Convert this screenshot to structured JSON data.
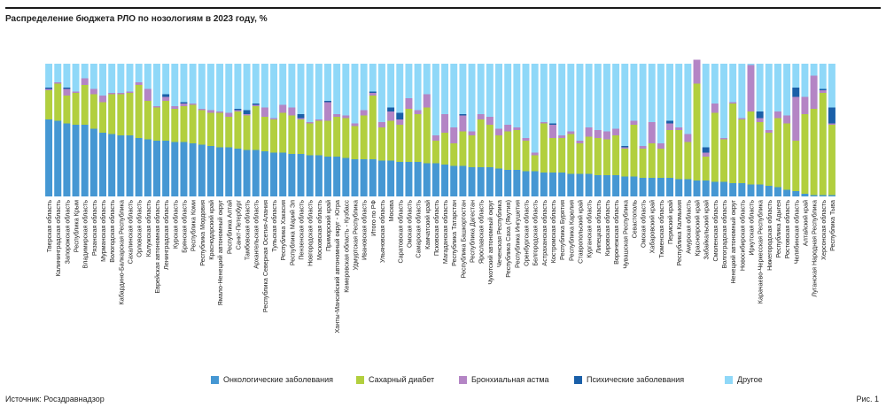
{
  "chart_data": {
    "type": "bar",
    "stacked": true,
    "percent": true,
    "title": "Распределение бюджета РЛО по нозологиям в 2023 году, %",
    "xlabel": "",
    "ylabel": "",
    "ylim": [
      0,
      100
    ],
    "grid": false,
    "legend_position": "bottom",
    "categories": [
      "Тверская область",
      "Калининградская область",
      "Запорожская область",
      "Республика Крым",
      "Владимирская область",
      "Рязанская область",
      "Мурманская область",
      "Вологодская область",
      "Кабардино-Балкарская Республика",
      "Сахалинская область",
      "Орловская область",
      "Калужская область",
      "Еврейская автономная область",
      "Ленинградская область",
      "Курская область",
      "Брянская область",
      "Республика Коми",
      "Республика Мордовия",
      "Краснодарский край",
      "Ямало-Ненецкий автономный округ",
      "Республика Алтай",
      "Санкт-Петербург",
      "Тамбовская область",
      "Архангельская область",
      "Республика Северная Осетия-Алания",
      "Тульская область",
      "Республика Хакасия",
      "Республика Марий Эл",
      "Пензенская область",
      "Новгородская область",
      "Московская область",
      "Приморский край",
      "Ханты-Мансийский автономный округ - Югра",
      "Кемеровская область - Кузбасс",
      "Удмуртская Республика",
      "Ивановская область",
      "Итого по РФ",
      "Ульяновская область",
      "Москва",
      "Саратовская область",
      "Омская область",
      "Самарская область",
      "Камчатский край",
      "Псковская область",
      "Магаданская область",
      "Республика Татарстан",
      "Республика Башкортостан",
      "Республика Дагестан",
      "Ярославская область",
      "Чукотский автономный округ",
      "Чеченская Республика",
      "Республика Саха (Якутия)",
      "Республика Ингушетия",
      "Оренбургская область",
      "Белгородская область",
      "Астраханская область",
      "Костромская область",
      "Республика Бурятия",
      "Республика Карелия",
      "Ставропольский край",
      "Курганская область",
      "Липецкая область",
      "Кировская область",
      "Воронежская область",
      "Чувашская Республика",
      "Севастополь",
      "Омская область",
      "Хабаровский край",
      "Тюменская область",
      "Пермский край",
      "Республика Калмыкия",
      "Амурская область",
      "Красноярский край",
      "Забайкальский край",
      "Смоленская область",
      "Волгоградская область",
      "Ненецкий автономный округ",
      "Новосибирская область",
      "Иркутская область",
      "Карачаево-Черкесская Республика",
      "Нижегородская область",
      "Республика Адыгея",
      "Ростовская область",
      "Челябинская область",
      "Алтайский край",
      "Луганская Народная Республика",
      "Херсонская область",
      "Республика Тыва"
    ],
    "series": [
      {
        "name": "Онкологические заболевания",
        "color": "#4597d3",
        "values": [
          58,
          57,
          55,
          54,
          54,
          51,
          48,
          47,
          46,
          46,
          44,
          43,
          42,
          42,
          41,
          41,
          40,
          39,
          38,
          37,
          37,
          36,
          35,
          35,
          34,
          33,
          33,
          32,
          32,
          31,
          31,
          30,
          30,
          29,
          28,
          28,
          28,
          27,
          27,
          26,
          26,
          26,
          25,
          25,
          24,
          23,
          23,
          22,
          22,
          22,
          21,
          20,
          20,
          19,
          19,
          18,
          18,
          18,
          17,
          17,
          17,
          16,
          16,
          16,
          15,
          15,
          14,
          14,
          14,
          14,
          13,
          13,
          12,
          12,
          11,
          11,
          10,
          10,
          9,
          9,
          8,
          7,
          5,
          4,
          2,
          1,
          1,
          1
        ]
      },
      {
        "name": "Сахарный диабет",
        "color": "#b2cf3e",
        "values": [
          22,
          28,
          21,
          24,
          30,
          26,
          23,
          30,
          31,
          32,
          40,
          29,
          25,
          30,
          25,
          27,
          29,
          26,
          25,
          26,
          23,
          28,
          26,
          33,
          26,
          25,
          30,
          29,
          26,
          24,
          26,
          27,
          30,
          30,
          25,
          33,
          48,
          25,
          30,
          28,
          40,
          36,
          42,
          17,
          24,
          17,
          26,
          24,
          36,
          32,
          25,
          29,
          30,
          23,
          12,
          37,
          26,
          26,
          30,
          23,
          28,
          28,
          27,
          30,
          21,
          39,
          22,
          26,
          22,
          36,
          37,
          28,
          73,
          18,
          52,
          32,
          60,
          48,
          55,
          47,
          40,
          52,
          50,
          38,
          60,
          65,
          77,
          53
        ]
      },
      {
        "name": "Бронхиальная астма",
        "color": "#b485c5",
        "values": [
          1,
          1,
          5,
          1,
          5,
          4,
          5,
          1,
          1,
          1,
          2,
          9,
          1,
          3,
          2,
          2,
          1,
          1,
          2,
          1,
          3,
          1,
          1,
          1,
          7,
          1,
          6,
          6,
          1,
          1,
          1,
          14,
          2,
          2,
          2,
          4,
          2,
          4,
          7,
          4,
          8,
          3,
          10,
          4,
          14,
          12,
          12,
          3,
          4,
          6,
          5,
          5,
          2,
          2,
          2,
          1,
          10,
          2,
          2,
          2,
          7,
          6,
          6,
          5,
          1,
          3,
          2,
          16,
          4,
          5,
          2,
          6,
          18,
          3,
          7,
          1,
          1,
          1,
          35,
          3,
          2,
          5,
          6,
          33,
          13,
          25,
          2,
          1
        ]
      },
      {
        "name": "Психические заболевания",
        "color": "#1a5fa8",
        "values": [
          1,
          0,
          1,
          0,
          0,
          0,
          0,
          0,
          0,
          0,
          0,
          0,
          0,
          2,
          0,
          1,
          0,
          0,
          0,
          0,
          0,
          1,
          3,
          1,
          0,
          0,
          0,
          0,
          3,
          0,
          0,
          1,
          0,
          0,
          0,
          0,
          1,
          0,
          3,
          5,
          0,
          0,
          0,
          0,
          0,
          0,
          1,
          0,
          0,
          0,
          0,
          0,
          0,
          0,
          0,
          0,
          1,
          0,
          0,
          0,
          0,
          0,
          0,
          0,
          1,
          0,
          0,
          0,
          0,
          2,
          0,
          0,
          0,
          4,
          0,
          0,
          0,
          0,
          0,
          5,
          0,
          0,
          0,
          7,
          0,
          0,
          1,
          12
        ]
      }
    ]
  },
  "legend": [
    "Онкологические заболевания",
    "Сахарный диабет",
    "Бронхиальная астма",
    "Психические заболевания",
    "Другое"
  ],
  "other_series": {
    "name": "Другое",
    "color": "#8fd8f8"
  },
  "source": "Источник: Росздравнадзор",
  "figure_label": "Рис. 1"
}
